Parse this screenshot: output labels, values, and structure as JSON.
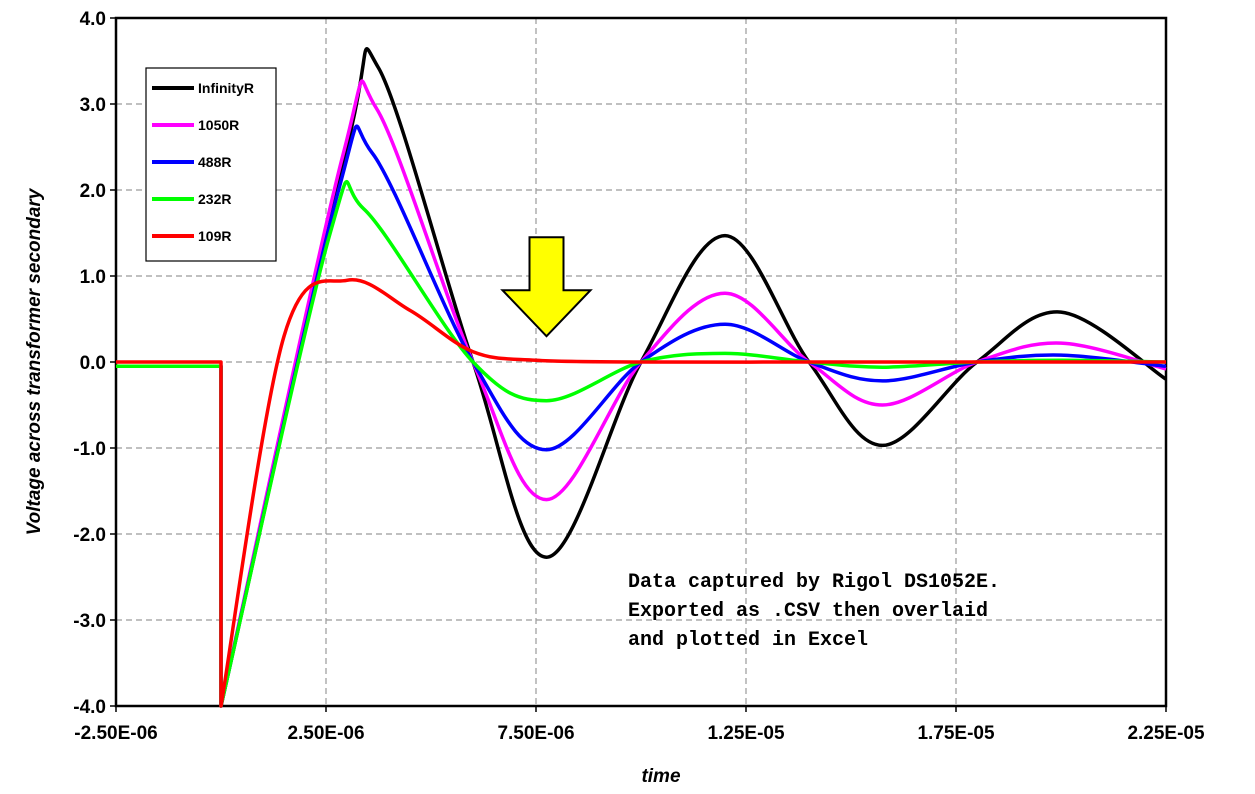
{
  "chart_data": {
    "type": "line",
    "title": "",
    "xlabel": "time",
    "ylabel": "Voltage across transformer secondary",
    "xlim": [
      -2.5e-06,
      2.25e-05
    ],
    "ylim": [
      -4.0,
      4.0
    ],
    "x_ticks": [
      -2.5e-06,
      2.5e-06,
      7.5e-06,
      1.25e-05,
      1.75e-05,
      2.25e-05
    ],
    "x_tick_labels": [
      "-2.50E-06",
      "2.50E-06",
      "7.50E-06",
      "1.25E-05",
      "1.75E-05",
      "2.25E-05"
    ],
    "y_ticks": [
      -4,
      -3,
      -2,
      -1,
      0,
      1,
      2,
      3,
      4
    ],
    "y_tick_labels": [
      "-4.0",
      "-3.0",
      "-2.0",
      "-1.0",
      "0.0",
      "1.0",
      "2.0",
      "3.0",
      "4.0"
    ],
    "grid": true,
    "legend_position": "top-left",
    "series": [
      {
        "name": "InfinityR",
        "color": "#000000",
        "x": [
          -2.5e-06,
          0,
          0,
          3e-06,
          3.75e-06,
          6e-06,
          7.75e-06,
          1e-05,
          1.2e-05,
          1.4e-05,
          1.575e-05,
          1.8e-05,
          2e-05,
          2.25e-05
        ],
        "y": [
          -0.05,
          -0.05,
          -4.0,
          2.5,
          3.42,
          0.0,
          -2.27,
          0.0,
          1.47,
          0.0,
          -0.97,
          0.0,
          0.58,
          -0.2
        ]
      },
      {
        "name": "1050R",
        "color": "#ff00ff",
        "x": [
          -2.5e-06,
          0,
          0,
          2.9e-06,
          3.7e-06,
          6e-06,
          7.75e-06,
          1e-05,
          1.2e-05,
          1.4e-05,
          1.575e-05,
          1.8e-05,
          2e-05,
          2.25e-05
        ],
        "y": [
          -0.05,
          -0.05,
          -4.0,
          2.4,
          2.95,
          0.0,
          -1.6,
          0.0,
          0.8,
          0.0,
          -0.5,
          0.0,
          0.22,
          -0.08
        ]
      },
      {
        "name": "488R",
        "color": "#0000ff",
        "x": [
          -2.5e-06,
          0,
          0,
          2.8e-06,
          3.6e-06,
          6e-06,
          7.75e-06,
          1e-05,
          1.2e-05,
          1.4e-05,
          1.575e-05,
          1.8e-05,
          2e-05,
          2.25e-05
        ],
        "y": [
          -0.05,
          -0.05,
          -4.0,
          2.0,
          2.43,
          0.0,
          -1.02,
          0.0,
          0.44,
          0.0,
          -0.22,
          0.0,
          0.08,
          -0.05
        ]
      },
      {
        "name": "232R",
        "color": "#00ff00",
        "x": [
          -2.5e-06,
          0,
          0,
          2.6e-06,
          3.4e-06,
          6e-06,
          7.75e-06,
          1e-05,
          1.2e-05,
          1.4e-05,
          1.575e-05,
          1.8e-05,
          2e-05,
          2.25e-05
        ],
        "y": [
          -0.05,
          -0.05,
          -4.0,
          1.5,
          1.78,
          0.0,
          -0.45,
          0.0,
          0.1,
          0.0,
          -0.06,
          0.0,
          0.02,
          0.0
        ]
      },
      {
        "name": "109R",
        "color": "#ff0000",
        "x": [
          -2.5e-06,
          0,
          0,
          1.5e-06,
          3e-06,
          4.5e-06,
          6e-06,
          7.5e-06,
          1e-05,
          1.4e-05,
          1.8e-05,
          2.25e-05
        ],
        "y": [
          0.0,
          0.0,
          -4.0,
          0.3,
          0.95,
          0.6,
          0.12,
          0.02,
          0.0,
          0.0,
          0.0,
          0.0
        ]
      }
    ],
    "annotation": {
      "lines": [
        "Data captured by Rigol DS1052E.",
        "Exported as .CSV then overlaid",
        "and plotted in Excel"
      ]
    },
    "arrow": {
      "x": 7.75e-06,
      "y_top": 1.45,
      "y_tip": 0.3,
      "color": "#ffff00"
    }
  }
}
